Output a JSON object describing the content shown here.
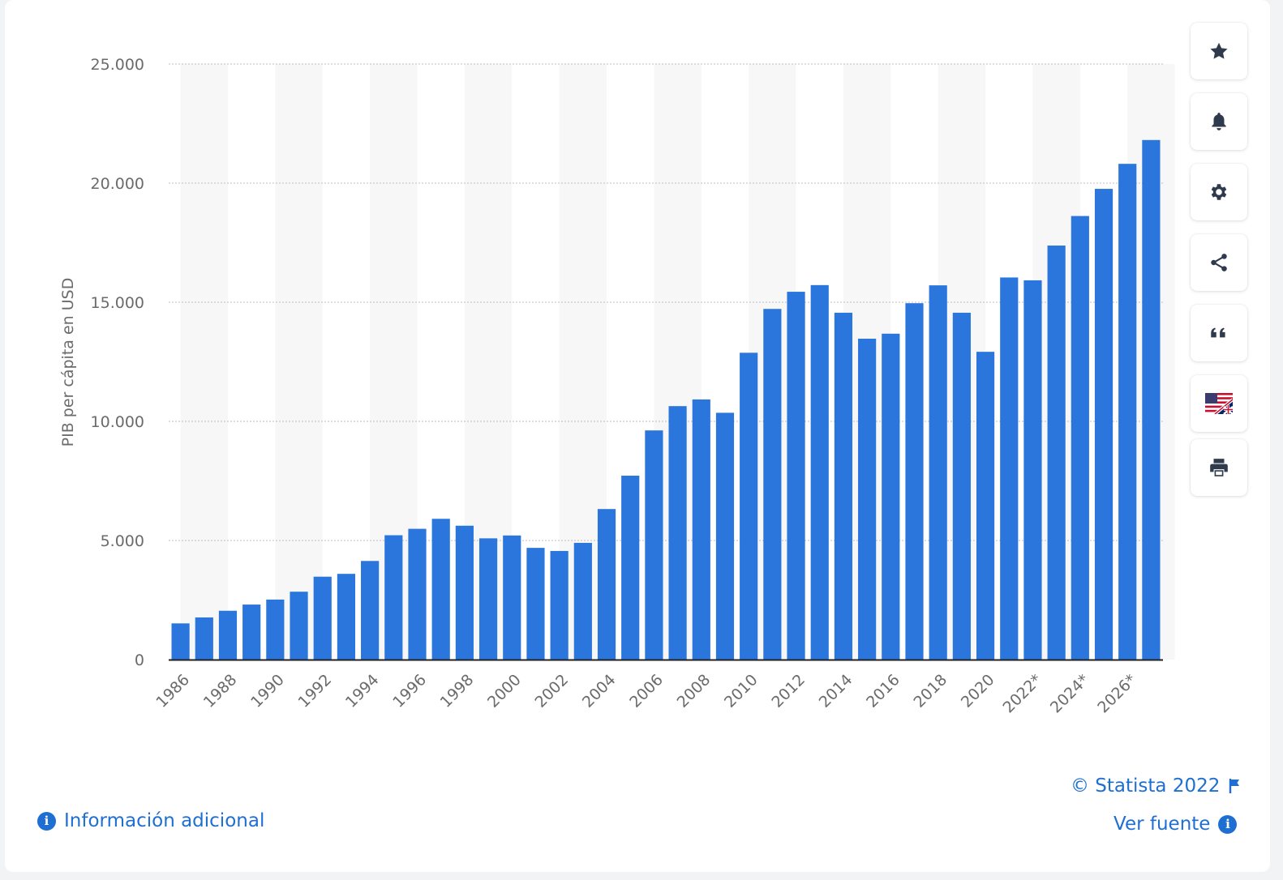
{
  "chart_data": {
    "type": "bar",
    "ylabel": "PIB per cápita en USD",
    "ylim": [
      0,
      25000
    ],
    "yticks": [
      0,
      5000,
      10000,
      15000,
      20000,
      25000
    ],
    "ytick_labels": [
      "0",
      "5.000",
      "10.000",
      "15.000",
      "20.000",
      "25.000"
    ],
    "categories": [
      "1986",
      "1987",
      "1988",
      "1989",
      "1990",
      "1991",
      "1992",
      "1993",
      "1994",
      "1995",
      "1996",
      "1997",
      "1998",
      "1999",
      "2000",
      "2001",
      "2002",
      "2003",
      "2004",
      "2005",
      "2006",
      "2007",
      "2008",
      "2009",
      "2010",
      "2011",
      "2012",
      "2013",
      "2014",
      "2015",
      "2016",
      "2017",
      "2018",
      "2019",
      "2020",
      "2021",
      "2022*",
      "2023*",
      "2024*",
      "2025*",
      "2026*",
      "2027*"
    ],
    "values": [
      1520,
      1770,
      2050,
      2310,
      2520,
      2850,
      3480,
      3600,
      4140,
      5220,
      5490,
      5910,
      5620,
      5090,
      5210,
      4690,
      4560,
      4900,
      6320,
      7720,
      9620,
      10640,
      10920,
      10360,
      12880,
      14720,
      15440,
      15720,
      14560,
      13470,
      13680,
      14960,
      15710,
      14560,
      12920,
      16040,
      15920,
      17380,
      18620,
      19760,
      20810,
      21810
    ],
    "xtick_labels": [
      "1986",
      "1988",
      "1990",
      "1992",
      "1994",
      "1996",
      "1998",
      "2000",
      "2002",
      "2004",
      "2006",
      "2008",
      "2010",
      "2012",
      "2014",
      "2016",
      "2018",
      "2020",
      "2022*",
      "2024*",
      "2026*"
    ],
    "grid": true,
    "bar_color": "#2a76dd"
  },
  "toolbar": {
    "icons": [
      "star-icon",
      "bell-icon",
      "gear-icon",
      "share-icon",
      "quote-icon",
      "flag-icon",
      "printer-icon"
    ]
  },
  "footer": {
    "info_label": "Información adicional",
    "copyright": "© Statista 2022",
    "source_label": "Ver fuente"
  },
  "colors": {
    "accent": "#1f6fd2",
    "bar": "#2a76dd",
    "axis_text": "#6b6b6b"
  }
}
